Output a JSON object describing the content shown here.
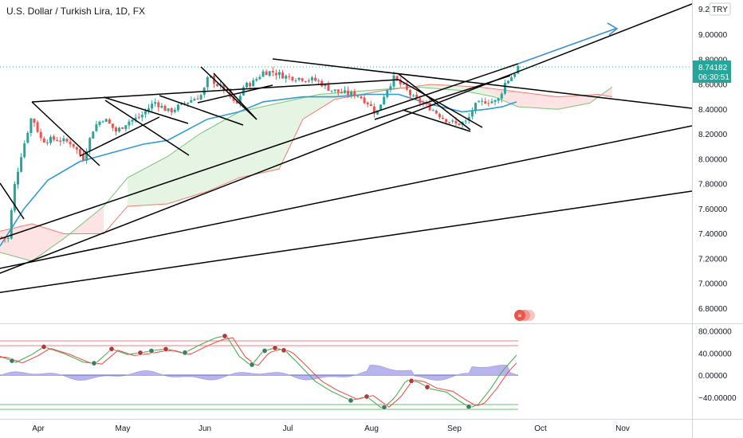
{
  "header": {
    "symbol_title": "U.S. Dollar / Turkish Lira, 1D, FX"
  },
  "price_tag": {
    "price": "8.74182",
    "countdown": "06:30:51",
    "currency": "TRY",
    "top_label": "9.2"
  },
  "colors": {
    "up": "#26a69a",
    "down": "#ef5350",
    "line": "#000000",
    "arrow": "#3d8fcf",
    "kijun": "#2f9bd6",
    "cloud_green": "#e6f4e3",
    "cloud_red": "#fde3e3",
    "tag_bg": "#26a69a"
  },
  "chart_data": [
    {
      "type": "candlestick",
      "title": "U.S. Dollar / Turkish Lira, 1D, FX",
      "x_labels": [
        "Apr",
        "May",
        "Jun",
        "Jul",
        "Aug",
        "Sep",
        "Oct",
        "Nov"
      ],
      "y_ticks": [
        "9.00000",
        "8.80000",
        "8.60000",
        "8.40000",
        "8.20000",
        "8.00000",
        "7.80000",
        "7.60000",
        "7.40000",
        "7.20000",
        "7.00000",
        "6.80000"
      ],
      "ylim": [
        6.72,
        9.28
      ],
      "last_price": 8.74182,
      "grid": false
    },
    {
      "type": "line",
      "y_ticks": [
        "80.00000",
        "40.00000",
        "0.00000",
        "−40.00000"
      ],
      "ylim": [
        -65,
        90
      ]
    }
  ]
}
